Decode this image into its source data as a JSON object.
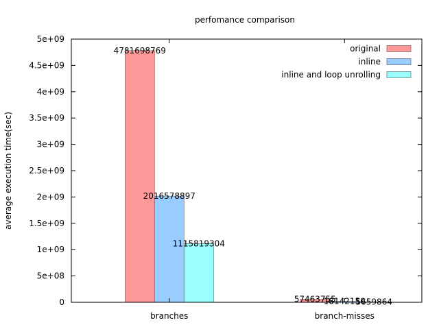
{
  "chart_data": {
    "type": "bar",
    "title": "perfomance comparison",
    "xlabel": "",
    "ylabel": "average execution time(sec)",
    "categories": [
      "branches",
      "branch-misses"
    ],
    "series": [
      {
        "name": "original",
        "values": [
          4781698769,
          57463755
        ],
        "labels": [
          "4781698769",
          "57463755"
        ],
        "color": "#ff9999"
      },
      {
        "name": "inline",
        "values": [
          2016578897,
          18142150
        ],
        "labels": [
          "2016578897",
          "18142150"
        ],
        "color": "#99ccff"
      },
      {
        "name": "inline and loop unrolling",
        "values": [
          1115819304,
          5659864
        ],
        "labels": [
          "1115819304",
          "5659864"
        ],
        "color": "#99ffff"
      }
    ],
    "ylim": [
      0,
      5000000000
    ],
    "yticks": [
      {
        "value": 0,
        "label": "0"
      },
      {
        "value": 500000000,
        "label": "5e+08"
      },
      {
        "value": 1000000000,
        "label": "1e+09"
      },
      {
        "value": 1500000000,
        "label": "1.5e+09"
      },
      {
        "value": 2000000000,
        "label": "2e+09"
      },
      {
        "value": 2500000000,
        "label": "2.5e+09"
      },
      {
        "value": 3000000000,
        "label": "3e+09"
      },
      {
        "value": 3500000000,
        "label": "3.5e+09"
      },
      {
        "value": 4000000000,
        "label": "4e+09"
      },
      {
        "value": 4500000000,
        "label": "4.5e+09"
      },
      {
        "value": 5000000000,
        "label": "5e+09"
      }
    ],
    "grid": false,
    "legend": "top-right"
  }
}
